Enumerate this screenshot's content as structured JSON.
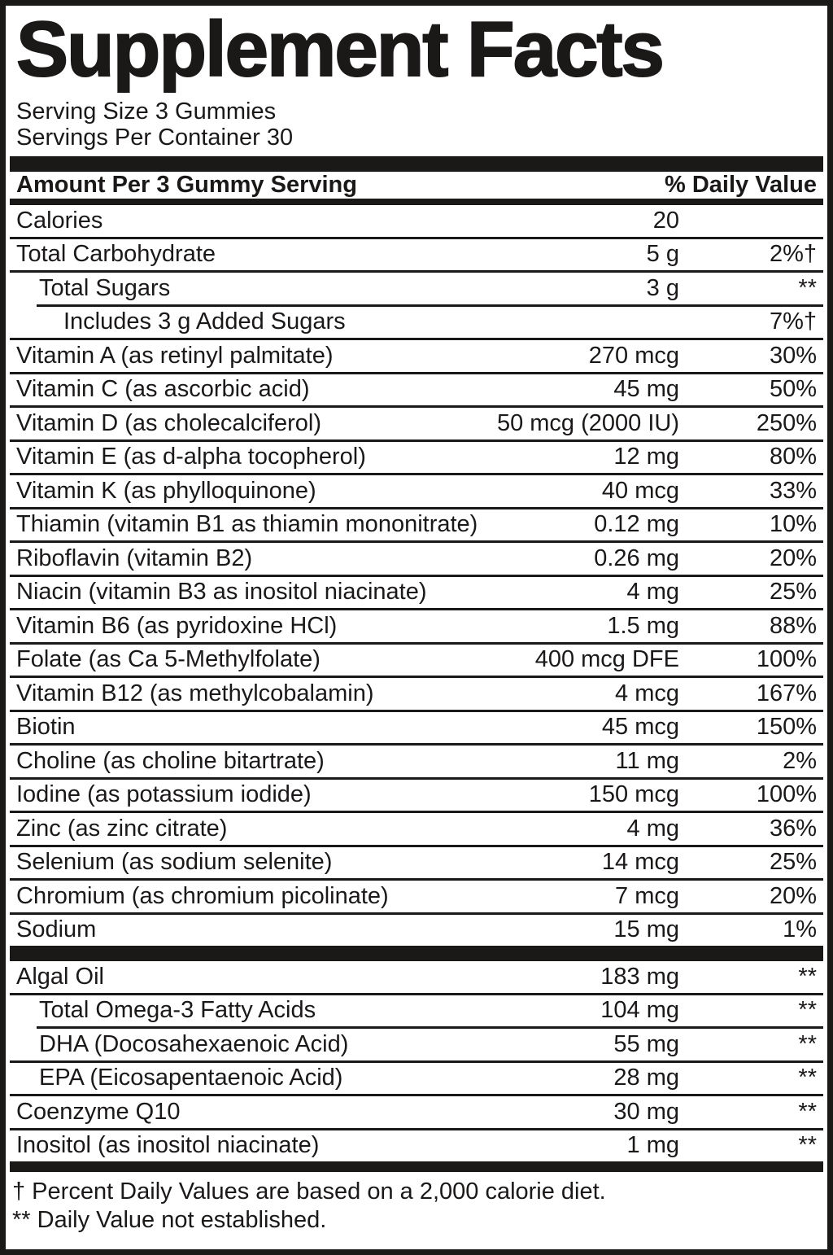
{
  "label": {
    "title": "Supplement Facts",
    "serving_size": "Serving Size 3 Gummies",
    "servings_per_container": "Servings Per Container 30",
    "columns": {
      "amount_header": "Amount Per 3 Gummy Serving",
      "daily_value_header": "% Daily Value"
    },
    "sections": [
      {
        "name": "vitamins-and-minerals",
        "rows": [
          {
            "name": "Calories",
            "amount": "20",
            "dv": "",
            "indent": 0,
            "sep": "full"
          },
          {
            "name": "Total Carbohydrate",
            "amount": "5 g",
            "dv": "2%†",
            "indent": 0,
            "sep": "full"
          },
          {
            "name": "Total Sugars",
            "amount": "3 g",
            "dv": "**",
            "indent": 1,
            "sep": "indent"
          },
          {
            "name": "Includes 3 g Added Sugars",
            "amount": "",
            "dv": "7%†",
            "indent": 2,
            "sep": "full"
          },
          {
            "name": "Vitamin A (as retinyl palmitate)",
            "amount": "270 mcg",
            "dv": "30%",
            "indent": 0,
            "sep": "full"
          },
          {
            "name": "Vitamin C (as ascorbic acid)",
            "amount": "45 mg",
            "dv": "50%",
            "indent": 0,
            "sep": "full"
          },
          {
            "name": "Vitamin D (as cholecalciferol)",
            "amount": "50 mcg (2000 IU)",
            "dv": "250%",
            "indent": 0,
            "sep": "full"
          },
          {
            "name": "Vitamin E (as d-alpha tocopherol)",
            "amount": "12 mg",
            "dv": "80%",
            "indent": 0,
            "sep": "full"
          },
          {
            "name": "Vitamin K (as phylloquinone)",
            "amount": "40 mcg",
            "dv": "33%",
            "indent": 0,
            "sep": "full"
          },
          {
            "name": "Thiamin (vitamin B1 as thiamin mononitrate)",
            "amount": "0.12 mg",
            "dv": "10%",
            "indent": 0,
            "sep": "full"
          },
          {
            "name": "Riboflavin (vitamin B2)",
            "amount": "0.26 mg",
            "dv": "20%",
            "indent": 0,
            "sep": "full"
          },
          {
            "name": "Niacin (vitamin B3 as inositol niacinate)",
            "amount": "4 mg",
            "dv": "25%",
            "indent": 0,
            "sep": "full"
          },
          {
            "name": "Vitamin B6 (as pyridoxine HCl)",
            "amount": "1.5 mg",
            "dv": "88%",
            "indent": 0,
            "sep": "full"
          },
          {
            "name": "Folate (as Ca 5-Methylfolate)",
            "amount": "400 mcg DFE",
            "dv": "100%",
            "indent": 0,
            "sep": "full"
          },
          {
            "name": "Vitamin B12 (as methylcobalamin)",
            "amount": "4 mcg",
            "dv": "167%",
            "indent": 0,
            "sep": "full"
          },
          {
            "name": "Biotin",
            "amount": "45 mcg",
            "dv": "150%",
            "indent": 0,
            "sep": "full"
          },
          {
            "name": "Choline (as choline bitartrate)",
            "amount": "11 mg",
            "dv": "2%",
            "indent": 0,
            "sep": "full"
          },
          {
            "name": "Iodine (as potassium iodide)",
            "amount": "150 mcg",
            "dv": "100%",
            "indent": 0,
            "sep": "full"
          },
          {
            "name": "Zinc (as zinc citrate)",
            "amount": "4 mg",
            "dv": "36%",
            "indent": 0,
            "sep": "full"
          },
          {
            "name": "Selenium (as sodium selenite)",
            "amount": "14 mcg",
            "dv": "25%",
            "indent": 0,
            "sep": "full"
          },
          {
            "name": "Chromium (as chromium picolinate)",
            "amount": "7 mcg",
            "dv": "20%",
            "indent": 0,
            "sep": "full"
          },
          {
            "name": "Sodium",
            "amount": "15 mg",
            "dv": "1%",
            "indent": 0,
            "sep": "none"
          }
        ]
      },
      {
        "name": "oils-and-other",
        "rows": [
          {
            "name": "Algal Oil",
            "amount": "183 mg",
            "dv": "**",
            "indent": 0,
            "sep": "full"
          },
          {
            "name": "Total Omega-3 Fatty Acids",
            "amount": "104 mg",
            "dv": "**",
            "indent": 1,
            "sep": "indent"
          },
          {
            "name": "DHA (Docosahexaenoic Acid)",
            "amount": "55 mg",
            "dv": "**",
            "indent": 1,
            "sep": "full"
          },
          {
            "name": "EPA (Eicosapentaenoic Acid)",
            "amount": "28 mg",
            "dv": "**",
            "indent": 1,
            "sep": "full"
          },
          {
            "name": "Coenzyme Q10",
            "amount": "30 mg",
            "dv": "**",
            "indent": 0,
            "sep": "full"
          },
          {
            "name": "Inositol (as inositol niacinate)",
            "amount": "1 mg",
            "dv": "**",
            "indent": 0,
            "sep": "none"
          }
        ]
      }
    ],
    "footnotes": [
      "† Percent Daily Values are based on a 2,000 calorie diet.",
      "** Daily Value not established."
    ],
    "colors": {
      "ink": "#1b1818",
      "background": "#ffffff"
    }
  }
}
